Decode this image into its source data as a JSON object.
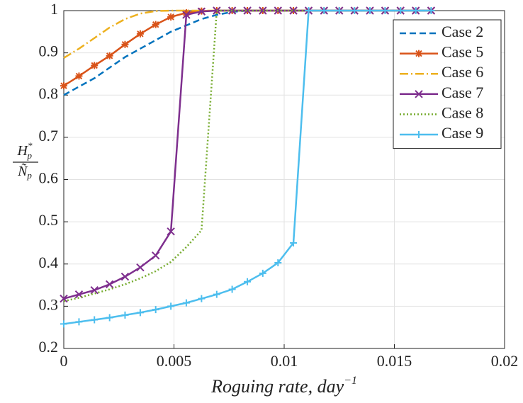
{
  "chart_data": {
    "type": "line",
    "x_label": "Roguing rate, day",
    "x_label_sup": "−1",
    "y_label": {
      "numerator": "H",
      "numerator_sub": "p",
      "numerator_sup": "*",
      "denominator": "Ñ",
      "denominator_sub": "p"
    },
    "x": [
      0,
      0.00069,
      0.00139,
      0.00208,
      0.00278,
      0.00347,
      0.00417,
      0.00486,
      0.00556,
      0.00625,
      0.00694,
      0.00764,
      0.00833,
      0.00903,
      0.00972,
      0.01042,
      0.01111,
      0.01181,
      0.0125,
      0.01319,
      0.01389,
      0.01458,
      0.01528,
      0.01597,
      0.01667
    ],
    "series": [
      {
        "name": "Case 2",
        "color": "#0072BD",
        "dash": "dashed",
        "marker": "none",
        "values": [
          0.8,
          0.82,
          0.84,
          0.865,
          0.89,
          0.91,
          0.93,
          0.95,
          0.965,
          0.98,
          0.99,
          0.997,
          1,
          1,
          1,
          1,
          1,
          1,
          1,
          1,
          1,
          1,
          1,
          1,
          1
        ]
      },
      {
        "name": "Case 5",
        "color": "#D95319",
        "dash": "solid",
        "marker": "asterisk",
        "values": [
          0.822,
          0.845,
          0.87,
          0.893,
          0.92,
          0.945,
          0.967,
          0.985,
          0.995,
          0.999,
          1,
          1,
          1,
          1,
          1,
          1,
          1,
          1,
          1,
          1,
          1,
          1,
          1,
          1,
          1
        ]
      },
      {
        "name": "Case 6",
        "color": "#EDB120",
        "dash": "dashdot",
        "marker": "none",
        "values": [
          0.888,
          0.91,
          0.935,
          0.96,
          0.98,
          0.993,
          0.999,
          1,
          1,
          1,
          1,
          1,
          1,
          1,
          1,
          1,
          1,
          1,
          1,
          1,
          1,
          1,
          1,
          1,
          1
        ]
      },
      {
        "name": "Case 7",
        "color": "#7E2F8E",
        "dash": "solid",
        "marker": "x",
        "values": [
          0.318,
          0.328,
          0.338,
          0.352,
          0.37,
          0.392,
          0.42,
          0.477,
          0.99,
          0.998,
          1,
          1,
          1,
          1,
          1,
          1,
          1,
          1,
          1,
          1,
          1,
          1,
          1,
          1,
          1
        ]
      },
      {
        "name": "Case 8",
        "color": "#77AC30",
        "dash": "dotted",
        "marker": "none",
        "values": [
          0.312,
          0.32,
          0.33,
          0.34,
          0.352,
          0.366,
          0.383,
          0.405,
          0.44,
          0.48,
          1,
          1,
          1,
          1,
          1,
          1,
          1,
          1,
          1,
          1,
          1,
          1,
          1,
          1,
          1
        ]
      },
      {
        "name": "Case 9",
        "color": "#4DBEEE",
        "dash": "solid",
        "marker": "plus",
        "values": [
          0.258,
          0.263,
          0.268,
          0.273,
          0.279,
          0.285,
          0.292,
          0.3,
          0.308,
          0.318,
          0.328,
          0.34,
          0.358,
          0.378,
          0.403,
          0.45,
          1,
          1,
          1,
          1,
          1,
          1,
          1,
          1,
          1
        ]
      }
    ],
    "xlim": [
      0,
      0.02
    ],
    "xticks": [
      0,
      0.005,
      0.01,
      0.015,
      0.02
    ],
    "ylim": [
      0.2,
      1
    ],
    "yticks": [
      0.2,
      0.3,
      0.4,
      0.5,
      0.6,
      0.7,
      0.8,
      0.9,
      1
    ],
    "grid": true,
    "legend": "top-right"
  }
}
